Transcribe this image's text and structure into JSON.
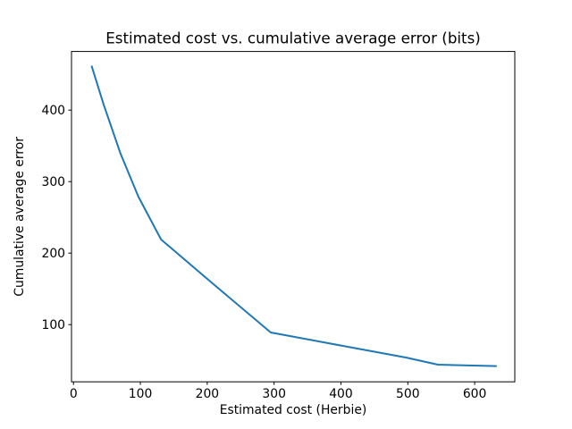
{
  "figure": {
    "background": "#ffffff"
  },
  "chart_data": {
    "type": "line",
    "title": "Estimated cost vs. cumulative average error (bits)",
    "xlabel": "Estimated cost (Herbie)",
    "ylabel": "Cumulative average error",
    "series": [
      {
        "name": "cumulative-average-error",
        "x": [
          27,
          45,
          70,
          97,
          131,
          210,
          295,
          410,
          497,
          545,
          633
        ],
        "y": [
          462,
          408,
          340,
          279,
          219,
          156,
          89,
          69,
          54,
          44,
          42
        ],
        "color": "#1f77b4",
        "line_width": 2
      }
    ],
    "xlim": [
      -3,
      660
    ],
    "ylim": [
      20,
      482
    ],
    "xticks": [
      0,
      100,
      200,
      300,
      400,
      500,
      600
    ],
    "yticks": [
      100,
      200,
      300,
      400
    ],
    "grid": false,
    "legend": "none",
    "markers": "none"
  }
}
